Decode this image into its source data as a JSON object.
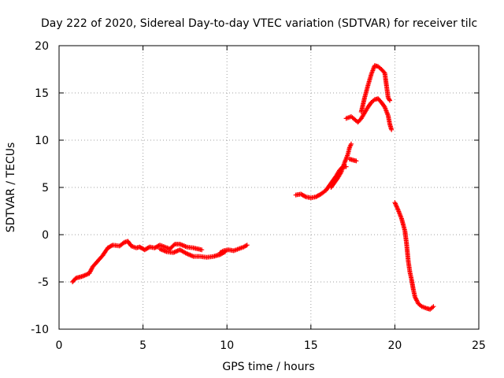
{
  "chart_data": {
    "type": "scatter",
    "title": "Day 222 of 2020, Sidereal Day-to-day VTEC variation (SDTVAR) for receiver tilc",
    "xlabel": "GPS time / hours",
    "ylabel": "SDTVAR / TECUs",
    "xlim": [
      0,
      25
    ],
    "ylim": [
      -10,
      20
    ],
    "x_ticks": [
      0,
      5,
      10,
      15,
      20,
      25
    ],
    "y_ticks": [
      -10,
      -5,
      0,
      5,
      10,
      15,
      20
    ],
    "x_tick_labels": [
      "0",
      "5",
      "10",
      "15",
      "20",
      "25"
    ],
    "y_tick_labels": [
      "-10",
      "-5",
      "0",
      "5",
      "10",
      "15",
      "20"
    ],
    "grid": true,
    "marker": "+",
    "series_color": "#ff0000",
    "segments": [
      [
        [
          0.8,
          -5.0
        ],
        [
          1.0,
          -4.6
        ],
        [
          1.4,
          -4.4
        ],
        [
          1.8,
          -4.1
        ],
        [
          2.0,
          -3.4
        ],
        [
          2.3,
          -2.8
        ],
        [
          2.6,
          -2.2
        ],
        [
          2.9,
          -1.4
        ],
        [
          3.2,
          -1.1
        ],
        [
          3.6,
          -1.2
        ],
        [
          3.9,
          -0.8
        ],
        [
          4.1,
          -0.7
        ],
        [
          4.3,
          -1.2
        ],
        [
          4.6,
          -1.4
        ],
        [
          4.8,
          -1.3
        ],
        [
          5.1,
          -1.6
        ],
        [
          5.4,
          -1.3
        ],
        [
          5.7,
          -1.4
        ],
        [
          6.0,
          -1.1
        ],
        [
          6.3,
          -1.3
        ],
        [
          6.6,
          -1.5
        ],
        [
          6.9,
          -1.0
        ],
        [
          7.2,
          -1.0
        ],
        [
          7.6,
          -1.3
        ],
        [
          8.0,
          -1.4
        ],
        [
          8.5,
          -1.6
        ]
      ],
      [
        [
          6.0,
          -1.5
        ],
        [
          6.4,
          -1.8
        ],
        [
          6.8,
          -1.9
        ],
        [
          7.2,
          -1.6
        ],
        [
          7.6,
          -2.0
        ],
        [
          8.0,
          -2.3
        ],
        [
          8.4,
          -2.3
        ],
        [
          8.8,
          -2.4
        ],
        [
          9.2,
          -2.3
        ],
        [
          9.6,
          -2.1
        ],
        [
          9.9,
          -1.8
        ]
      ],
      [
        [
          9.6,
          -1.9
        ],
        [
          9.8,
          -1.7
        ],
        [
          10.1,
          -1.6
        ],
        [
          10.4,
          -1.7
        ],
        [
          10.7,
          -1.5
        ],
        [
          11.0,
          -1.3
        ],
        [
          11.2,
          -1.1
        ]
      ],
      [
        [
          14.1,
          4.2
        ],
        [
          14.4,
          4.3
        ],
        [
          14.7,
          4.0
        ],
        [
          15.0,
          3.9
        ],
        [
          15.3,
          4.0
        ],
        [
          15.6,
          4.3
        ],
        [
          15.9,
          4.7
        ],
        [
          16.1,
          5.2
        ],
        [
          16.3,
          5.7
        ],
        [
          16.5,
          6.2
        ],
        [
          16.7,
          6.8
        ],
        [
          16.9,
          7.2
        ],
        [
          17.1,
          7.2
        ]
      ],
      [
        [
          16.2,
          5.0
        ],
        [
          16.4,
          5.5
        ],
        [
          16.6,
          6.0
        ],
        [
          16.8,
          6.6
        ],
        [
          17.0,
          7.6
        ],
        [
          17.2,
          8.5
        ],
        [
          17.3,
          9.2
        ],
        [
          17.4,
          9.6
        ]
      ],
      [
        [
          17.3,
          8.0
        ],
        [
          17.5,
          7.9
        ],
        [
          17.7,
          7.8
        ]
      ],
      [
        [
          17.1,
          12.3
        ],
        [
          17.4,
          12.5
        ],
        [
          17.6,
          12.2
        ],
        [
          17.8,
          11.9
        ],
        [
          18.0,
          12.3
        ],
        [
          18.2,
          12.9
        ],
        [
          18.4,
          13.5
        ],
        [
          18.6,
          14.0
        ],
        [
          18.8,
          14.3
        ],
        [
          19.0,
          14.4
        ],
        [
          19.2,
          14.0
        ],
        [
          19.4,
          13.5
        ],
        [
          19.6,
          12.6
        ],
        [
          19.7,
          11.7
        ],
        [
          19.8,
          11.1
        ]
      ],
      [
        [
          18.0,
          13.0
        ],
        [
          18.2,
          14.5
        ],
        [
          18.4,
          15.8
        ],
        [
          18.6,
          17.0
        ],
        [
          18.8,
          17.9
        ],
        [
          19.0,
          17.8
        ],
        [
          19.2,
          17.5
        ],
        [
          19.4,
          17.1
        ],
        [
          19.6,
          14.5
        ],
        [
          19.7,
          14.2
        ]
      ],
      [
        [
          20.0,
          3.4
        ],
        [
          20.2,
          2.6
        ],
        [
          20.4,
          1.7
        ],
        [
          20.6,
          0.4
        ],
        [
          20.7,
          -1.0
        ],
        [
          20.8,
          -2.8
        ],
        [
          20.9,
          -4.0
        ],
        [
          21.0,
          -4.8
        ],
        [
          21.1,
          -5.8
        ],
        [
          21.2,
          -6.6
        ],
        [
          21.4,
          -7.3
        ],
        [
          21.6,
          -7.6
        ],
        [
          21.9,
          -7.8
        ],
        [
          22.1,
          -7.9
        ],
        [
          22.3,
          -7.6
        ]
      ]
    ]
  }
}
